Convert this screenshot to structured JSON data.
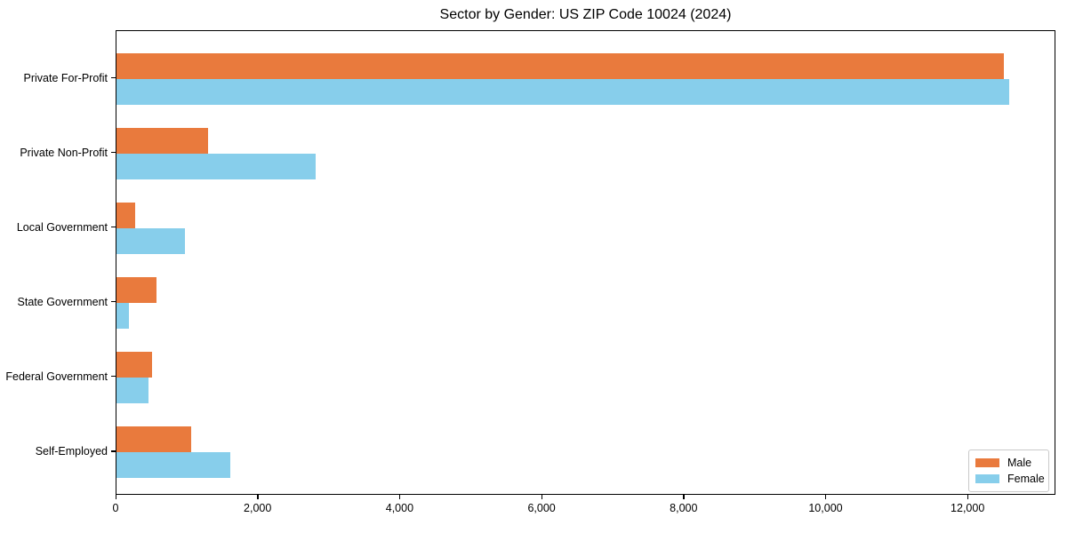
{
  "chart_data": {
    "type": "bar",
    "orientation": "horizontal",
    "title": "Sector by Gender: US ZIP Code 10024 (2024)",
    "xlabel": "",
    "ylabel": "",
    "categories": [
      "Private For-Profit",
      "Private Non-Profit",
      "Local Government",
      "State Government",
      "Federal Government",
      "Self-Employed"
    ],
    "series": [
      {
        "name": "Male",
        "color": "#E97A3D",
        "values": [
          12500,
          1290,
          260,
          560,
          500,
          1050
        ]
      },
      {
        "name": "Female",
        "color": "#87CEEB",
        "values": [
          12580,
          2800,
          960,
          180,
          450,
          1600
        ]
      }
    ],
    "xlim": [
      0,
      13200
    ],
    "x_ticks": [
      0,
      2000,
      4000,
      6000,
      8000,
      10000,
      12000
    ],
    "x_tick_labels": [
      "0",
      "2,000",
      "4,000",
      "6,000",
      "8,000",
      "10,000",
      "12,000"
    ],
    "grid": false,
    "legend": {
      "position": "lower right",
      "entries": [
        "Male",
        "Female"
      ]
    }
  }
}
